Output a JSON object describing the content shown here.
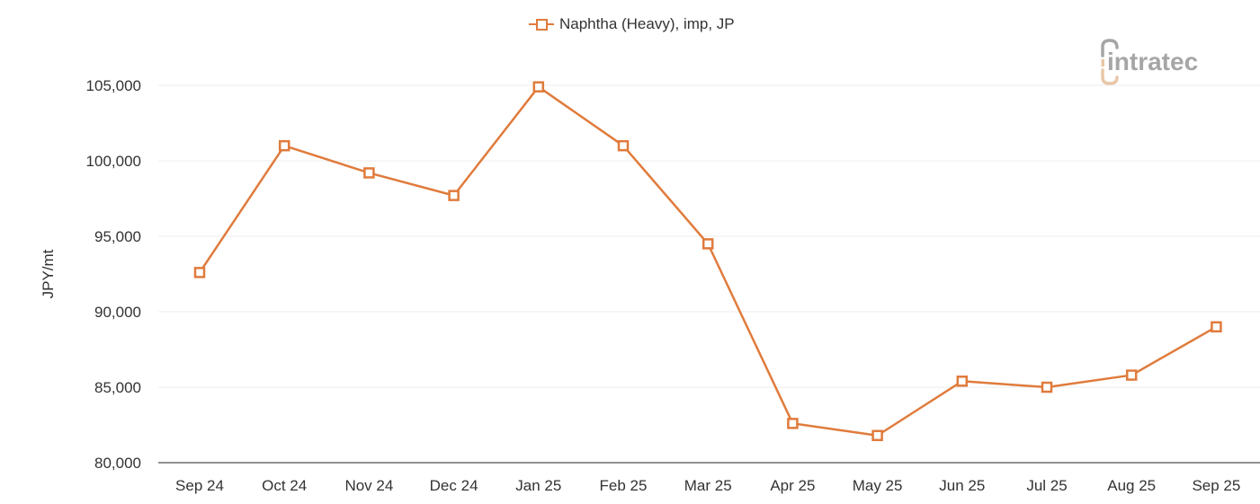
{
  "legend": {
    "label": "Naphtha (Heavy), imp, JP",
    "marker": "hollow-square",
    "color": "#e07b3c"
  },
  "logo": {
    "text": "intratec",
    "colors": {
      "primary": "#a6a6a6",
      "accent": "#e9c7a8"
    }
  },
  "axes": {
    "y_title": "JPY/mt",
    "y_ticks": [
      "80,000",
      "85,000",
      "90,000",
      "95,000",
      "100,000",
      "105,000"
    ],
    "x_ticks": [
      "Sep 24",
      "Oct 24",
      "Nov 24",
      "Dec 24",
      "Jan 25",
      "Feb 25",
      "Mar 25",
      "Apr 25",
      "May 25",
      "Jun 25",
      "Jul 25",
      "Aug 25",
      "Sep 25"
    ]
  },
  "colors": {
    "series": "#e07b3c",
    "grid": "#ececec",
    "axis": "#6e6e6e",
    "text": "#333333"
  },
  "chart_data": {
    "type": "line",
    "title": "",
    "xlabel": "",
    "ylabel": "JPY/mt",
    "categories": [
      "Sep 24",
      "Oct 24",
      "Nov 24",
      "Dec 24",
      "Jan 25",
      "Feb 25",
      "Mar 25",
      "Apr 25",
      "May 25",
      "Jun 25",
      "Jul 25",
      "Aug 25",
      "Sep 25"
    ],
    "series": [
      {
        "name": "Naphtha (Heavy), imp, JP",
        "color": "#e07b3c",
        "marker": "hollow-square",
        "values": [
          92600,
          101000,
          99200,
          97700,
          104900,
          101000,
          94500,
          82600,
          81800,
          85400,
          85000,
          85800,
          89000
        ]
      }
    ],
    "ylim": [
      80000,
      105000
    ],
    "y_tick_step": 5000,
    "grid": true,
    "legend_position": "top-center"
  }
}
